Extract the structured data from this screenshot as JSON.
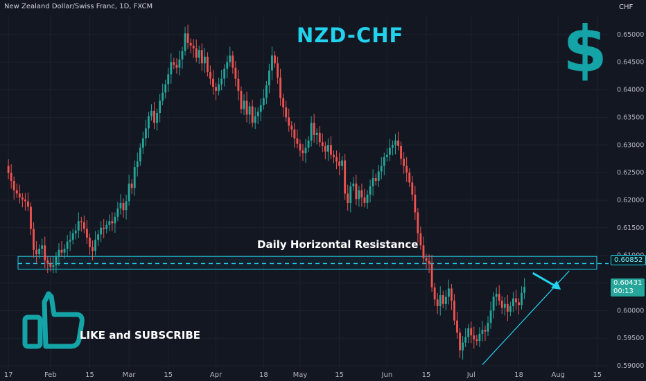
{
  "header": {
    "symbol_line": "New Zealand Dollar/Swiss Franc, 1D, FXCM",
    "currency": "CHF"
  },
  "annotations": {
    "title": "NZD-CHF",
    "dollar_icon": "$",
    "resistance_label": "Daily Horizontal Resistance",
    "cta": "LIKE and SUBSCRIBE"
  },
  "price_tags": {
    "resistance": "0.60852",
    "last_price": "0.60431",
    "countdown": "00:13"
  },
  "colors": {
    "up": "#26a69a",
    "down": "#ef5350",
    "accent": "#22d3ee",
    "background": "#131722"
  },
  "chart_data": {
    "type": "candlestick",
    "y_ticks": [
      0.59,
      0.595,
      0.6,
      0.605,
      0.61,
      0.615,
      0.62,
      0.625,
      0.63,
      0.635,
      0.64,
      0.645,
      0.65
    ],
    "y_tick_labels": [
      "0.59000",
      "0.59500",
      "0.60000",
      "0.60500",
      "0.61000",
      "0.61500",
      "0.62000",
      "0.62500",
      "0.63000",
      "0.63500",
      "0.64000",
      "0.64500",
      "0.65000"
    ],
    "ylim": [
      0.5895,
      0.6535
    ],
    "x_ticks": [
      {
        "label": "17",
        "day": 0
      },
      {
        "label": "Feb",
        "day": 15
      },
      {
        "label": "15",
        "day": 29
      },
      {
        "label": "Mar",
        "day": 43
      },
      {
        "label": "15",
        "day": 57
      },
      {
        "label": "Apr",
        "day": 74
      },
      {
        "label": "18",
        "day": 91
      },
      {
        "label": "May",
        "day": 104
      },
      {
        "label": "15",
        "day": 118
      },
      {
        "label": "Jun",
        "day": 135
      },
      {
        "label": "15",
        "day": 149
      },
      {
        "label": "Jul",
        "day": 165
      },
      {
        "label": "18",
        "day": 182
      },
      {
        "label": "Aug",
        "day": 196
      },
      {
        "label": "15",
        "day": 210
      }
    ],
    "xlim_days": [
      -3,
      214
    ],
    "resistance_zone": [
      0.6075,
      0.6098
    ],
    "resistance_level": 0.60852,
    "trendline": [
      [
        169,
        0.5902
      ],
      [
        200,
        0.6072
      ]
    ],
    "arrow": [
      [
        187,
        0.6068
      ],
      [
        197,
        0.6038
      ]
    ],
    "close_series": [
      [
        -1,
        0.6262
      ],
      [
        0,
        0.6249
      ],
      [
        1,
        0.6235
      ],
      [
        2,
        0.6218
      ],
      [
        3,
        0.6212
      ],
      [
        4,
        0.6205
      ],
      [
        5,
        0.6201
      ],
      [
        6,
        0.6198
      ],
      [
        7,
        0.6188
      ],
      [
        8,
        0.6148
      ],
      [
        9,
        0.611
      ],
      [
        10,
        0.6102
      ],
      [
        11,
        0.6112
      ],
      [
        12,
        0.6118
      ],
      [
        13,
        0.6091
      ],
      [
        14,
        0.6085
      ],
      [
        15,
        0.6079
      ],
      [
        16,
        0.6082
      ],
      [
        17,
        0.6098
      ],
      [
        18,
        0.611
      ],
      [
        19,
        0.6105
      ],
      [
        20,
        0.6112
      ],
      [
        21,
        0.6125
      ],
      [
        22,
        0.6128
      ],
      [
        23,
        0.614
      ],
      [
        24,
        0.6145
      ],
      [
        25,
        0.6162
      ],
      [
        26,
        0.616
      ],
      [
        27,
        0.6148
      ],
      [
        28,
        0.6132
      ],
      [
        29,
        0.6115
      ],
      [
        30,
        0.6108
      ],
      [
        31,
        0.6128
      ],
      [
        32,
        0.6138
      ],
      [
        33,
        0.615
      ],
      [
        34,
        0.6148
      ],
      [
        35,
        0.6155
      ],
      [
        36,
        0.6162
      ],
      [
        37,
        0.6158
      ],
      [
        38,
        0.617
      ],
      [
        39,
        0.6185
      ],
      [
        40,
        0.6195
      ],
      [
        41,
        0.6182
      ],
      [
        42,
        0.6198
      ],
      [
        43,
        0.623
      ],
      [
        44,
        0.6222
      ],
      [
        45,
        0.626
      ],
      [
        46,
        0.627
      ],
      [
        47,
        0.6295
      ],
      [
        48,
        0.6312
      ],
      [
        49,
        0.633
      ],
      [
        50,
        0.6352
      ],
      [
        51,
        0.6362
      ],
      [
        52,
        0.634
      ],
      [
        53,
        0.6358
      ],
      [
        54,
        0.638
      ],
      [
        55,
        0.6395
      ],
      [
        56,
        0.641
      ],
      [
        57,
        0.6428
      ],
      [
        58,
        0.645
      ],
      [
        59,
        0.6445
      ],
      [
        60,
        0.644
      ],
      [
        61,
        0.6455
      ],
      [
        62,
        0.647
      ],
      [
        63,
        0.6502
      ],
      [
        64,
        0.6485
      ],
      [
        65,
        0.648
      ],
      [
        66,
        0.6475
      ],
      [
        67,
        0.6458
      ],
      [
        68,
        0.6472
      ],
      [
        69,
        0.6448
      ],
      [
        70,
        0.646
      ],
      [
        71,
        0.6432
      ],
      [
        72,
        0.642
      ],
      [
        73,
        0.6405
      ],
      [
        74,
        0.6398
      ],
      [
        75,
        0.641
      ],
      [
        76,
        0.642
      ],
      [
        77,
        0.6438
      ],
      [
        78,
        0.645
      ],
      [
        79,
        0.6462
      ],
      [
        80,
        0.644
      ],
      [
        81,
        0.642
      ],
      [
        82,
        0.6398
      ],
      [
        83,
        0.6365
      ],
      [
        84,
        0.638
      ],
      [
        85,
        0.6355
      ],
      [
        86,
        0.637
      ],
      [
        87,
        0.634
      ],
      [
        88,
        0.6352
      ],
      [
        89,
        0.636
      ],
      [
        90,
        0.6372
      ],
      [
        91,
        0.6385
      ],
      [
        92,
        0.6408
      ],
      [
        93,
        0.6435
      ],
      [
        94,
        0.6462
      ],
      [
        95,
        0.6448
      ],
      [
        96,
        0.6422
      ],
      [
        97,
        0.6385
      ],
      [
        98,
        0.6368
      ],
      [
        99,
        0.635
      ],
      [
        100,
        0.6335
      ],
      [
        101,
        0.6328
      ],
      [
        102,
        0.6312
      ],
      [
        103,
        0.6302
      ],
      [
        104,
        0.629
      ],
      [
        105,
        0.6285
      ],
      [
        106,
        0.6295
      ],
      [
        107,
        0.6308
      ],
      [
        108,
        0.634
      ],
      [
        109,
        0.6318
      ],
      [
        110,
        0.6322
      ],
      [
        111,
        0.6305
      ],
      [
        112,
        0.6298
      ],
      [
        113,
        0.6288
      ],
      [
        114,
        0.63
      ],
      [
        115,
        0.6282
      ],
      [
        116,
        0.6278
      ],
      [
        117,
        0.627
      ],
      [
        118,
        0.6262
      ],
      [
        119,
        0.6272
      ],
      [
        120,
        0.6212
      ],
      [
        121,
        0.6195
      ],
      [
        122,
        0.6225
      ],
      [
        123,
        0.623
      ],
      [
        124,
        0.6202
      ],
      [
        125,
        0.6218
      ],
      [
        126,
        0.6205
      ],
      [
        127,
        0.6195
      ],
      [
        128,
        0.621
      ],
      [
        129,
        0.6225
      ],
      [
        130,
        0.624
      ],
      [
        131,
        0.6235
      ],
      [
        132,
        0.6252
      ],
      [
        133,
        0.6262
      ],
      [
        134,
        0.6278
      ],
      [
        135,
        0.6282
      ],
      [
        136,
        0.6295
      ],
      [
        137,
        0.63
      ],
      [
        138,
        0.6308
      ],
      [
        139,
        0.6298
      ],
      [
        140,
        0.6275
      ],
      [
        141,
        0.6262
      ],
      [
        142,
        0.625
      ],
      [
        143,
        0.6232
      ],
      [
        144,
        0.621
      ],
      [
        145,
        0.6178
      ],
      [
        146,
        0.614
      ],
      [
        147,
        0.6118
      ],
      [
        148,
        0.6095
      ],
      [
        149,
        0.609
      ],
      [
        150,
        0.6085
      ],
      [
        151,
        0.6042
      ],
      [
        152,
        0.602
      ],
      [
        153,
        0.6008
      ],
      [
        154,
        0.6028
      ],
      [
        155,
        0.6012
      ],
      [
        156,
        0.6025
      ],
      [
        157,
        0.604
      ],
      [
        158,
        0.6018
      ],
      [
        159,
        0.5982
      ],
      [
        160,
        0.596
      ],
      [
        161,
        0.5928
      ],
      [
        162,
        0.5942
      ],
      [
        163,
        0.5952
      ],
      [
        164,
        0.5968
      ],
      [
        165,
        0.5955
      ],
      [
        166,
        0.5948
      ],
      [
        167,
        0.5945
      ],
      [
        168,
        0.5958
      ],
      [
        169,
        0.5965
      ],
      [
        170,
        0.5962
      ],
      [
        171,
        0.5978
      ],
      [
        172,
        0.6
      ],
      [
        173,
        0.6025
      ],
      [
        174,
        0.603
      ],
      [
        175,
        0.6018
      ],
      [
        176,
        0.6005
      ],
      [
        177,
        0.6012
      ],
      [
        178,
        0.5998
      ],
      [
        179,
        0.6008
      ],
      [
        180,
        0.6022
      ],
      [
        181,
        0.6015
      ],
      [
        182,
        0.601
      ],
      [
        183,
        0.6032
      ],
      [
        184,
        0.6043
      ]
    ]
  }
}
